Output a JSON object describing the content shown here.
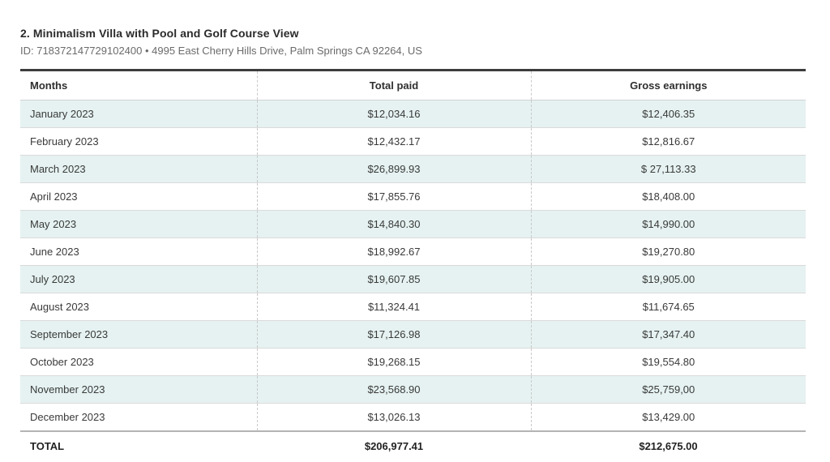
{
  "page": {
    "title": "2. Minimalism Villa with Pool and Golf Course View",
    "subtitle": "ID: 718372147729102400 • 4995 East Cherry Hills Drive, Palm Springs CA 92264, US"
  },
  "table": {
    "columns": [
      "Months",
      "Total paid",
      "Gross earnings"
    ],
    "rows": [
      {
        "month": "January 2023",
        "total_paid": "$12,034.16",
        "gross_earnings": "$12,406.35"
      },
      {
        "month": "February 2023",
        "total_paid": "$12,432.17",
        "gross_earnings": "$12,816.67"
      },
      {
        "month": "March 2023",
        "total_paid": "$26,899.93",
        "gross_earnings": "$ 27,113.33"
      },
      {
        "month": "April 2023",
        "total_paid": "$17,855.76",
        "gross_earnings": "$18,408.00"
      },
      {
        "month": "May 2023",
        "total_paid": "$14,840.30",
        "gross_earnings": "$14,990.00"
      },
      {
        "month": "June 2023",
        "total_paid": "$18,992.67",
        "gross_earnings": "$19,270.80"
      },
      {
        "month": "July 2023",
        "total_paid": "$19,607.85",
        "gross_earnings": "$19,905.00"
      },
      {
        "month": "August 2023",
        "total_paid": "$11,324.41",
        "gross_earnings": "$11,674.65"
      },
      {
        "month": "September 2023",
        "total_paid": "$17,126.98",
        "gross_earnings": "$17,347.40"
      },
      {
        "month": "October 2023",
        "total_paid": "$19,268.15",
        "gross_earnings": "$19,554.80"
      },
      {
        "month": "November 2023",
        "total_paid": "$23,568.90",
        "gross_earnings": "$25,759,00"
      },
      {
        "month": "December 2023",
        "total_paid": "$13,026.13",
        "gross_earnings": "$13,429.00"
      }
    ],
    "total": {
      "label": "TOTAL",
      "total_paid": "$206,977.41",
      "gross_earnings": "$212,675.00"
    }
  },
  "colors": {
    "stripe_bg": "#e5f2f1",
    "top_border": "#3d3d3d",
    "dash_color": "#c9c9c9",
    "total_border": "#b4b4b4",
    "text_color": "#3a3a3a",
    "subtitle_color": "#6b6b6b"
  }
}
